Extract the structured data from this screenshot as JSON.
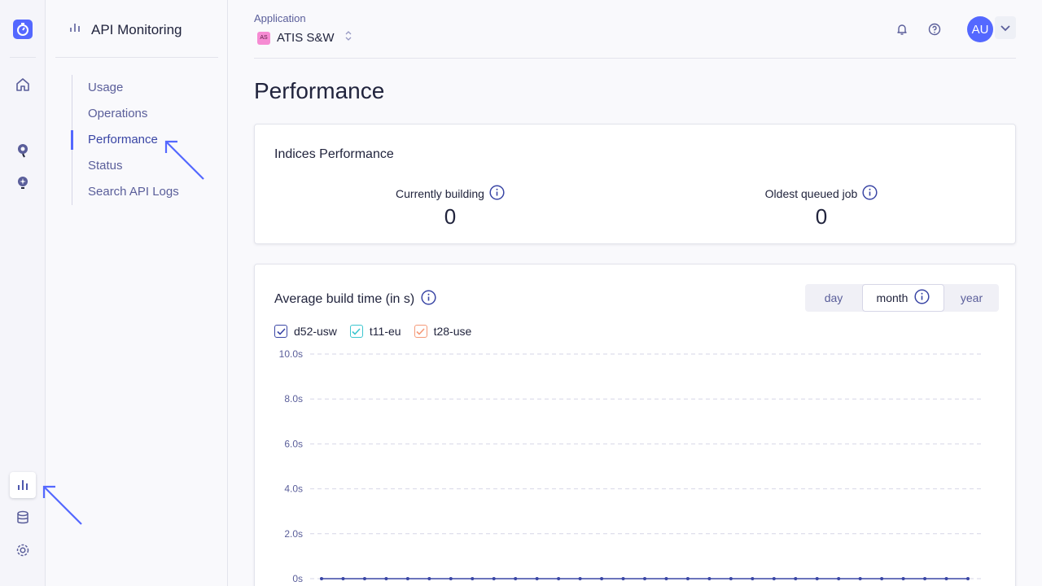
{
  "rail": {
    "icons": [
      "stopwatch-logo-icon",
      "home-icon",
      "search-pin-icon",
      "ai-bulb-icon",
      "bar-chart-icon",
      "database-icon",
      "settings-icon"
    ]
  },
  "subnav": {
    "title": "API Monitoring",
    "items": [
      {
        "label": "Usage",
        "active": false
      },
      {
        "label": "Operations",
        "active": false
      },
      {
        "label": "Performance",
        "active": true
      },
      {
        "label": "Status",
        "active": false
      },
      {
        "label": "Search API Logs",
        "active": false
      }
    ]
  },
  "header": {
    "app_label": "Application",
    "app_badge": "AS",
    "app_name": "ATIS S&W",
    "avatar": "AU"
  },
  "page": {
    "title": "Performance"
  },
  "indices": {
    "title": "Indices Performance",
    "building_label": "Currently building",
    "building_value": "0",
    "queued_label": "Oldest queued job",
    "queued_value": "0"
  },
  "build": {
    "title": "Average build time (in s)",
    "ranges": [
      "day",
      "month",
      "year"
    ],
    "active_range": "month"
  },
  "colors": {
    "accent": "#5468ff",
    "d52": "#3a46a5",
    "t11": "#3cc6cf",
    "t28": "#f59a78"
  },
  "chart_data": {
    "type": "line",
    "ylim": [
      0,
      10
    ],
    "yticks": [
      "10.0s",
      "8.0s",
      "6.0s",
      "4.0s",
      "2.0s",
      "0s"
    ],
    "series": [
      {
        "name": "d52-usw",
        "color": "#3a46a5",
        "values": [
          0,
          0,
          0,
          0,
          0,
          0,
          0,
          0,
          0,
          0,
          0,
          0,
          0,
          0,
          0,
          0,
          0,
          0,
          0,
          0,
          0,
          0,
          0,
          0,
          0,
          0,
          0,
          0,
          0,
          0,
          0
        ]
      },
      {
        "name": "t11-eu",
        "color": "#3cc6cf",
        "values": []
      },
      {
        "name": "t28-use",
        "color": "#f59a78",
        "values": []
      }
    ]
  }
}
